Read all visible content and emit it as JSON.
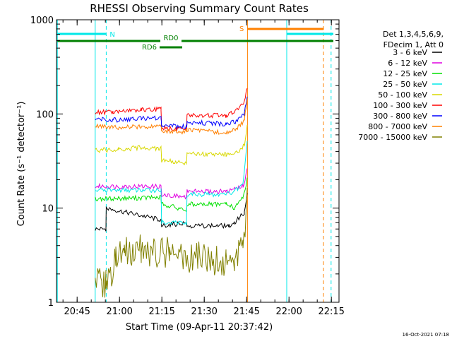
{
  "chart_data": {
    "type": "line",
    "title": "RHESSI Observing Summary Count Rates",
    "ylabel": "Count Rate (s⁻¹ detector⁻¹)",
    "xlabel": "Start Time (09-Apr-11 20:37:42)",
    "x_unit": "minutes since 20:37:42",
    "xlim": [
      0,
      100
    ],
    "ylim": [
      1,
      1000
    ],
    "yscale": "log",
    "x_ticks": [
      {
        "x": 7.3,
        "label": "20:45"
      },
      {
        "x": 22.3,
        "label": "21:00"
      },
      {
        "x": 37.3,
        "label": "21:15"
      },
      {
        "x": 52.3,
        "label": "21:30"
      },
      {
        "x": 67.3,
        "label": "21:45"
      },
      {
        "x": 82.3,
        "label": "22:00"
      },
      {
        "x": 97.3,
        "label": "22:15"
      }
    ],
    "y_ticks": [
      {
        "y": 1,
        "label": "1"
      },
      {
        "y": 10,
        "label": "10"
      },
      {
        "y": 100,
        "label": "100"
      },
      {
        "y": 1000,
        "label": "1000"
      }
    ],
    "legend": {
      "placement": "right",
      "header": [
        "Det 1,3,4,5,6,9,",
        "FDecim 1, Att 0"
      ]
    },
    "series": [
      {
        "name": "3 - 6 keV",
        "color": "#000000",
        "x": [
          13.7,
          17.5,
          17.6,
          37,
          37.2,
          46,
          46.2,
          61,
          63,
          66.5,
          67.5
        ],
        "y": [
          6,
          6,
          10,
          7.5,
          6.5,
          7,
          6.5,
          6.5,
          7,
          9,
          14
        ]
      },
      {
        "name": "6 - 12 keV",
        "color": "#e000e0",
        "x": [
          13.7,
          37,
          37.2,
          46,
          46.2,
          60,
          63,
          66,
          67.5
        ],
        "y": [
          17,
          17,
          14,
          13,
          15,
          15,
          16,
          17,
          25
        ]
      },
      {
        "name": "12 - 25 keV",
        "color": "#00e000",
        "x": [
          13.7,
          37,
          37.2,
          46,
          46.2,
          60,
          63,
          66,
          67.5
        ],
        "y": [
          12.5,
          13,
          11,
          9.5,
          11,
          11,
          10,
          13,
          20
        ]
      },
      {
        "name": "25 - 50 keV",
        "color": "#00e8e8",
        "x": [
          13.7,
          37,
          37.2,
          46,
          46.2,
          60,
          63,
          66,
          67.5
        ],
        "y": [
          15.5,
          15.5,
          7,
          7,
          14,
          14,
          15,
          18,
          50
        ]
      },
      {
        "name": "50 - 100 keV",
        "color": "#d8d800",
        "x": [
          13.7,
          22,
          30,
          37,
          37.2,
          46,
          46.2,
          60,
          64,
          66.5,
          67.5
        ],
        "y": [
          41,
          42,
          44,
          43,
          32,
          30,
          38,
          37,
          40,
          46,
          75
        ]
      },
      {
        "name": "100 - 300 keV",
        "color": "#ff0000",
        "x": [
          13.7,
          20,
          30,
          37,
          37.2,
          46,
          46.2,
          60,
          64,
          66.5,
          67.5
        ],
        "y": [
          104,
          105,
          110,
          112,
          70,
          70,
          98,
          96,
          110,
          130,
          190
        ]
      },
      {
        "name": "300 - 800 keV",
        "color": "#0000ff",
        "x": [
          13.7,
          20,
          30,
          37,
          37.2,
          46,
          46.2,
          60,
          64,
          66.5,
          67.5
        ],
        "y": [
          90,
          86,
          90,
          91,
          75,
          73,
          82,
          78,
          84,
          100,
          160
        ]
      },
      {
        "name": "800 - 7000 keV",
        "color": "#ff8000",
        "x": [
          13.7,
          20,
          30,
          37,
          37.2,
          46,
          46.2,
          60,
          64,
          66.5,
          67.5
        ],
        "y": [
          74,
          72,
          73,
          74,
          67,
          64,
          68,
          63,
          70,
          85,
          145
        ]
      },
      {
        "name": "7000 - 15000 keV",
        "color": "#808000",
        "x": [
          13.7,
          15,
          16,
          17.5,
          18,
          21,
          24,
          30,
          40,
          50,
          60,
          63,
          66,
          67.5
        ],
        "y": [
          1.5,
          1.7,
          1.4,
          1.5,
          1.5,
          3,
          3.3,
          3.6,
          3.3,
          3.0,
          2.8,
          2.6,
          4,
          12
        ]
      }
    ],
    "overlays": {
      "vertical_lines": [
        {
          "x": 0.3,
          "color": "#00e8e8",
          "style": "solid"
        },
        {
          "x": 13.7,
          "color": "#00e8e8",
          "style": "solid"
        },
        {
          "x": 17.6,
          "color": "#00e8e8",
          "style": "dashed"
        },
        {
          "x": 67.6,
          "color": "#ff8000",
          "style": "solid"
        },
        {
          "x": 81.5,
          "color": "#00e8e8",
          "style": "solid"
        },
        {
          "x": 94.5,
          "color": "#ff8000",
          "style": "dashed"
        },
        {
          "x": 97.2,
          "color": "#00e8e8",
          "style": "dashed"
        }
      ],
      "bars": [
        {
          "x0": 0.3,
          "x1": 17.6,
          "color": "#00e8e8",
          "level": "upper",
          "label": "N"
        },
        {
          "x0": 81.5,
          "x1": 98,
          "color": "#00e8e8",
          "level": "upper",
          "label": ""
        },
        {
          "x0": 67.6,
          "x1": 94.5,
          "color": "#ff8000",
          "level": "top",
          "label": "S"
        },
        {
          "x0": 0.3,
          "x1": 98,
          "color": "#008000",
          "level": "middle",
          "label": "RD0"
        },
        {
          "x0": 36.5,
          "x1": 44.5,
          "color": "#008000",
          "level": "lower",
          "label": "RD6"
        }
      ]
    }
  },
  "footer": {
    "timestamp": "16-Oct-2021 07:18"
  }
}
